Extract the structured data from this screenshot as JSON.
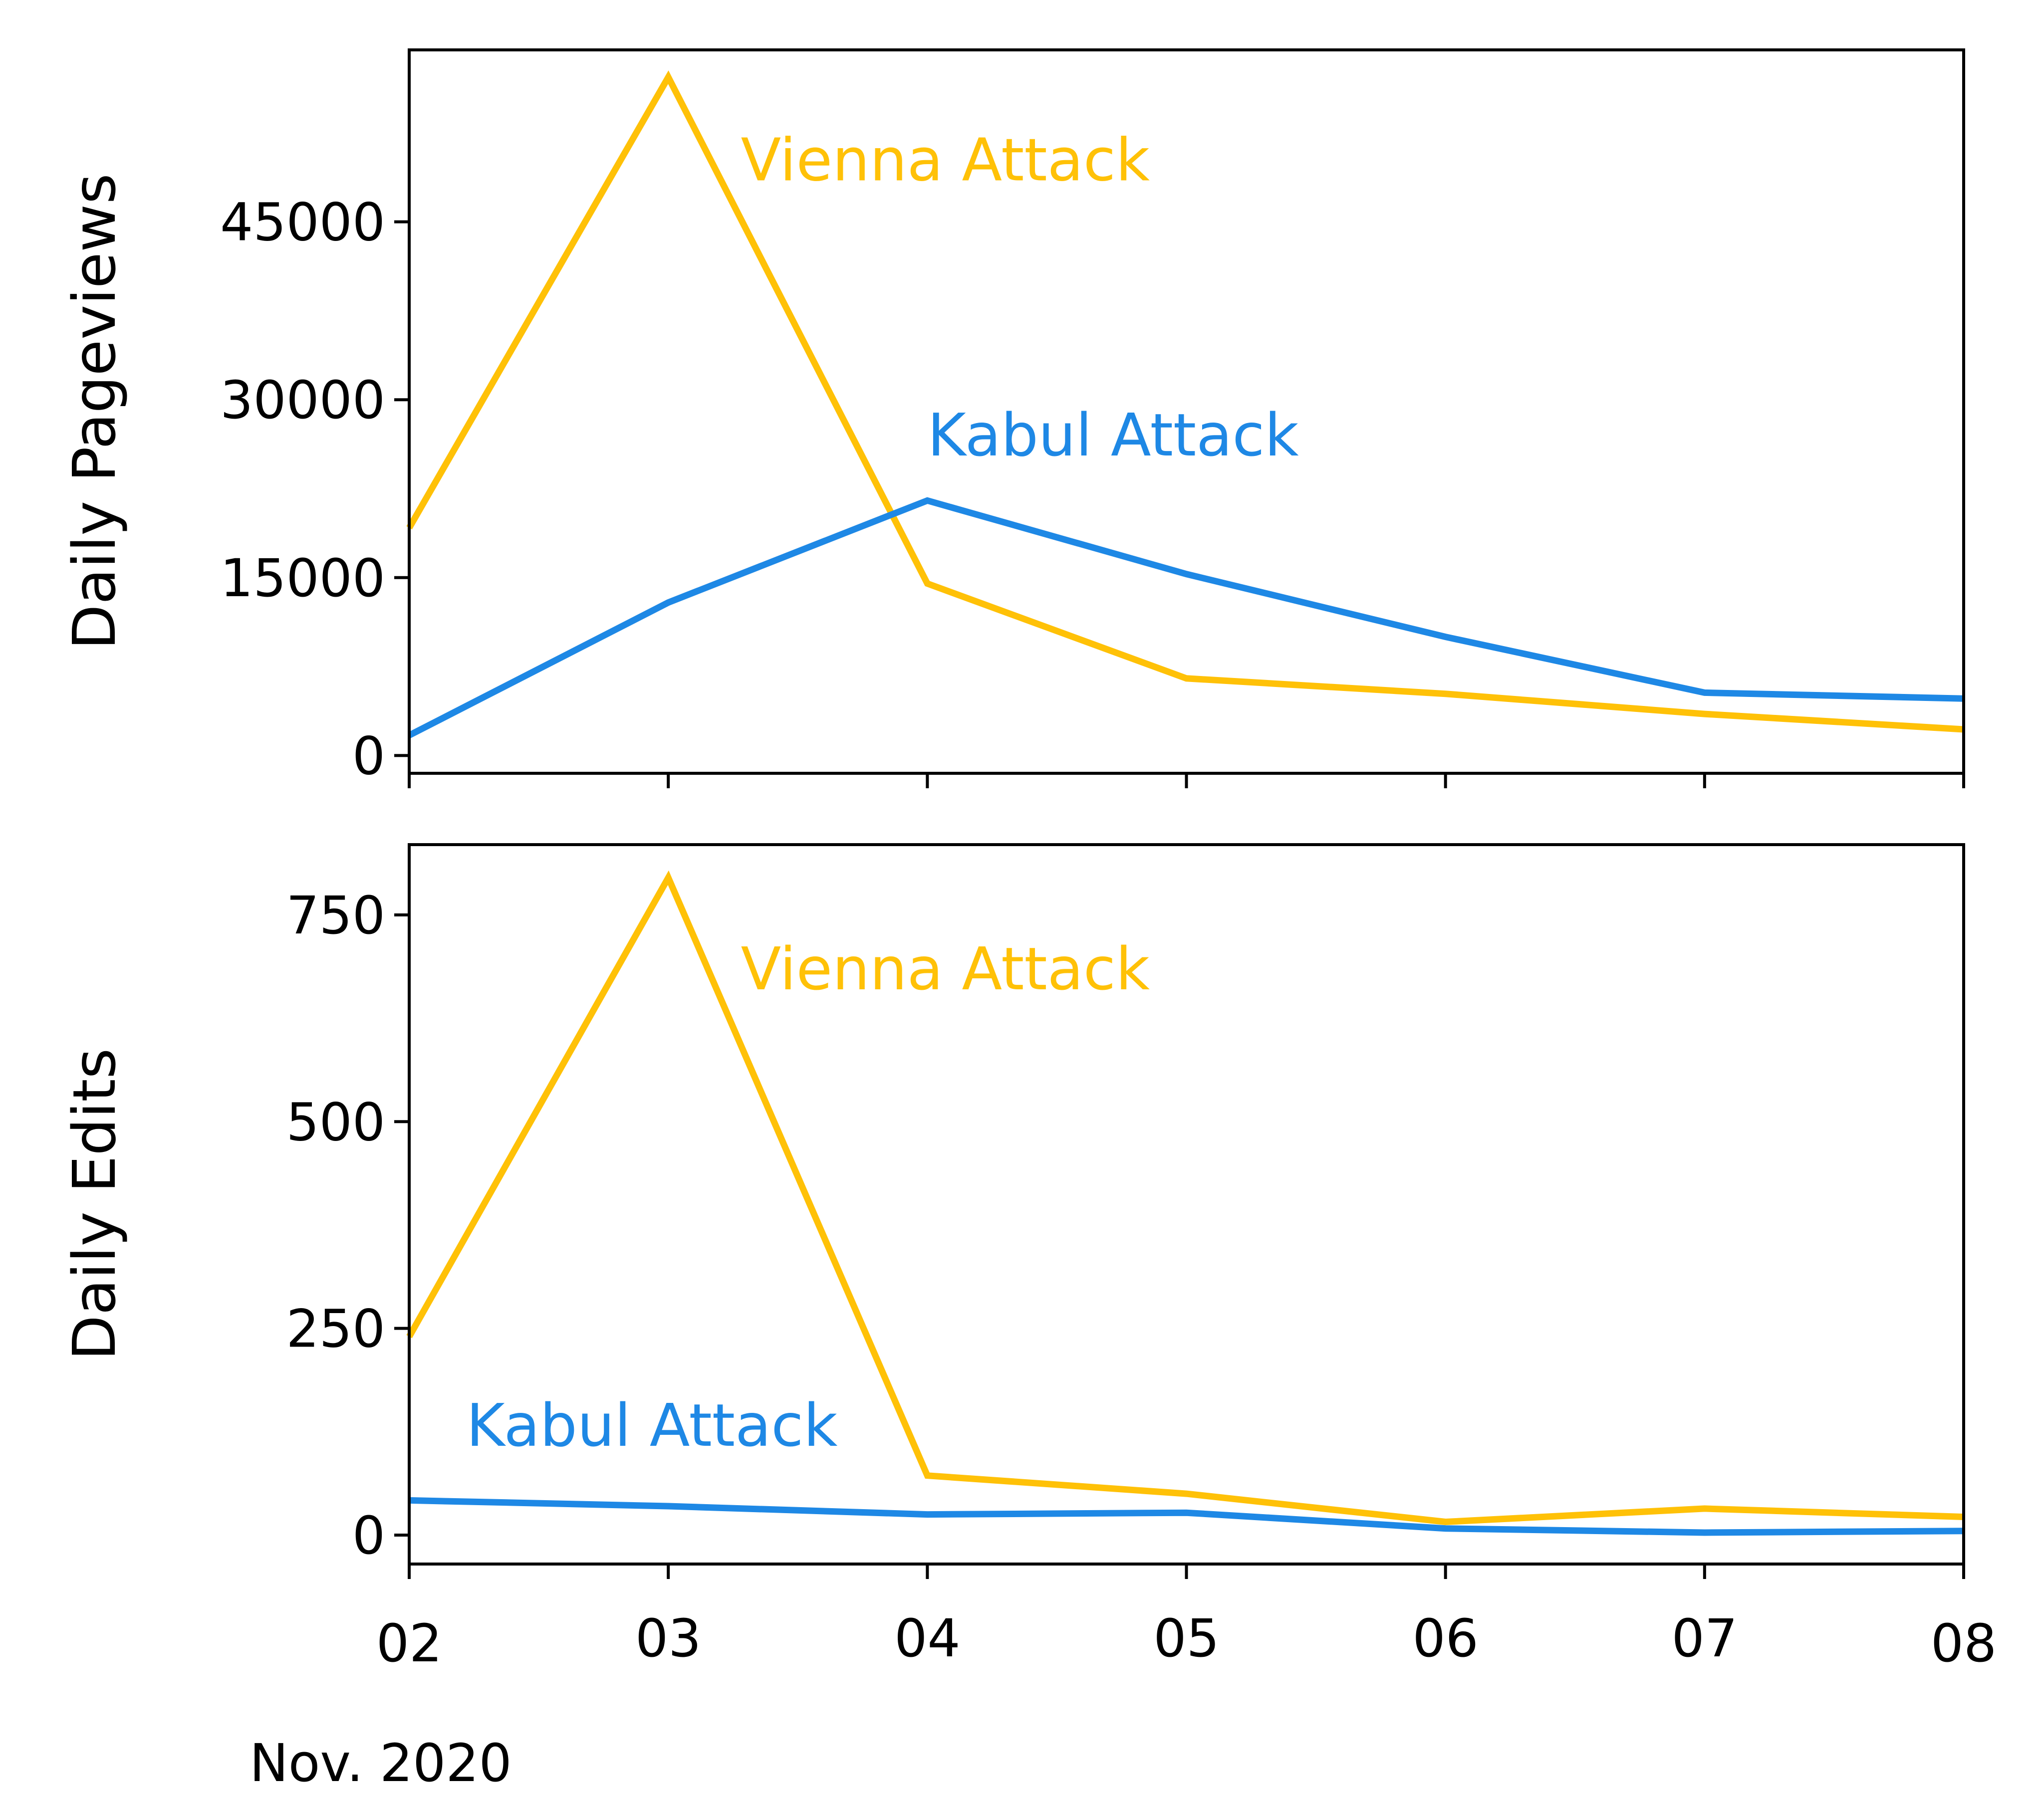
{
  "chart_data": [
    {
      "type": "line",
      "ylabel": "Daily Pageviews",
      "x": [
        "02",
        "03",
        "04",
        "05",
        "06",
        "07",
        "08"
      ],
      "xlabel_extra": "",
      "ylim": [
        -1500,
        59500
      ],
      "yticks": [
        0,
        15000,
        30000,
        45000
      ],
      "ytick_labels": [
        "0",
        "15000",
        "30000",
        "45000"
      ],
      "show_xtick_labels": false,
      "grid": false,
      "series": [
        {
          "name": "Vienna Attack",
          "color": "#FFC107",
          "values": [
            19200,
            57200,
            14500,
            6500,
            5200,
            3500,
            2200
          ]
        },
        {
          "name": "Kabul Attack",
          "color": "#1E88E5",
          "values": [
            1700,
            12900,
            21500,
            15300,
            10000,
            5300,
            4800
          ]
        }
      ],
      "annotations": [
        {
          "text": "Vienna Attack",
          "color": "#FFC107",
          "x": "03",
          "x_offset_days": 0.28,
          "y": 48500
        },
        {
          "text": "Kabul Attack",
          "color": "#1E88E5",
          "x": "04",
          "x_offset_days": 0.0,
          "y": 25300
        }
      ]
    },
    {
      "type": "line",
      "ylabel": "Daily Edits",
      "x": [
        "02",
        "03",
        "04",
        "05",
        "06",
        "07",
        "08"
      ],
      "xlabel_extra": "Nov. 2020",
      "ylim": [
        -35,
        835
      ],
      "yticks": [
        0,
        250,
        500,
        750
      ],
      "ytick_labels": [
        "0",
        "250",
        "500",
        "750"
      ],
      "show_xtick_labels": true,
      "grid": false,
      "series": [
        {
          "name": "Vienna Attack",
          "color": "#FFC107",
          "values": [
            240,
            795,
            72,
            50,
            16,
            32,
            22
          ]
        },
        {
          "name": "Kabul Attack",
          "color": "#1E88E5",
          "values": [
            42,
            35,
            25,
            27,
            8,
            3,
            5
          ]
        }
      ],
      "annotations": [
        {
          "text": "Vienna Attack",
          "color": "#FFC107",
          "x": "03",
          "x_offset_days": 0.28,
          "y": 660
        },
        {
          "text": "Kabul Attack",
          "color": "#1E88E5",
          "x": "02",
          "x_offset_days": 0.22,
          "y": 108
        }
      ]
    }
  ]
}
